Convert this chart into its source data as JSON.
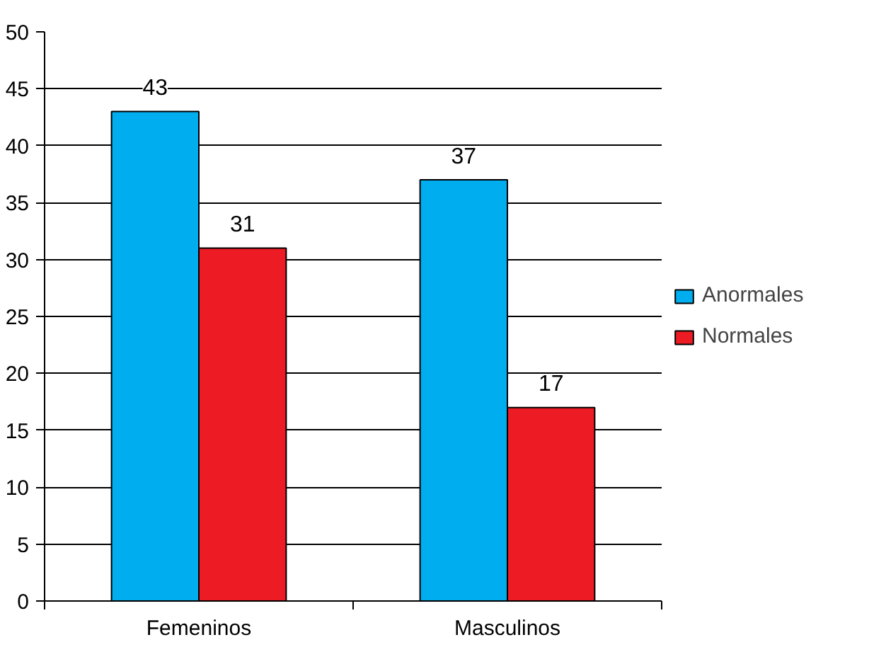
{
  "chart_data": {
    "type": "bar",
    "categories": [
      "Femeninos",
      "Masculinos"
    ],
    "series": [
      {
        "name": "Anormales",
        "color": "#00aeef",
        "values": [
          43,
          37
        ]
      },
      {
        "name": "Normales",
        "color": "#ed1c24",
        "values": [
          31,
          17
        ]
      }
    ],
    "ylim": [
      0,
      50
    ],
    "yticks": [
      0,
      5,
      10,
      15,
      20,
      25,
      30,
      35,
      40,
      45,
      50
    ],
    "grid": "y",
    "legend": "right",
    "data_labels": true
  }
}
